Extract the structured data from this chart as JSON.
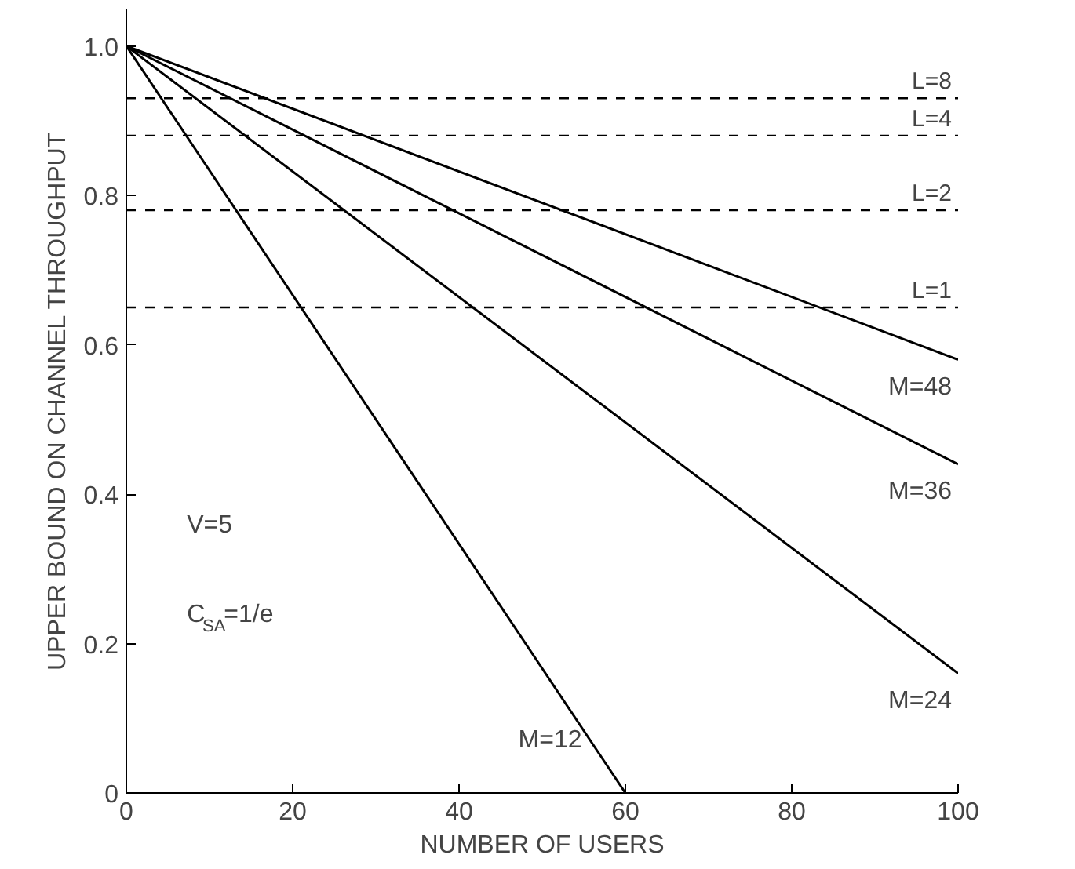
{
  "chart_data": {
    "type": "line",
    "xlabel": "NUMBER OF USERS",
    "ylabel": "UPPER BOUND ON CHANNEL THROUGHPUT",
    "xlim": [
      0,
      100
    ],
    "ylim": [
      0,
      1.05
    ],
    "xticks": [
      0,
      20,
      40,
      60,
      80,
      100
    ],
    "yticks": [
      0,
      0.2,
      0.4,
      0.6,
      0.8,
      {
        "value": 1,
        "label": "1.0"
      }
    ],
    "grid": false,
    "marker": "none",
    "line_style": "solid",
    "series": [
      {
        "name": "M=12",
        "color": "#000000",
        "x": [
          0,
          60
        ],
        "values": [
          1,
          0
        ]
      },
      {
        "name": "M=24",
        "color": "#000000",
        "x": [
          0,
          100
        ],
        "values": [
          1,
          0.16
        ]
      },
      {
        "name": "M=36",
        "color": "#000000",
        "x": [
          0,
          100
        ],
        "values": [
          1,
          0.44
        ]
      },
      {
        "name": "M=48",
        "color": "#000000",
        "x": [
          0,
          100
        ],
        "values": [
          1,
          0.58
        ]
      }
    ],
    "ref_lines": [
      {
        "axis": "y",
        "value": 0.93,
        "line_style": "dashed",
        "color": "#000000"
      },
      {
        "axis": "y",
        "value": 0.88,
        "line_style": "dashed",
        "color": "#000000"
      },
      {
        "axis": "y",
        "value": 0.78,
        "line_style": "dashed",
        "color": "#000000"
      },
      {
        "axis": "y",
        "value": 0.65,
        "line_style": "dashed",
        "color": "#000000"
      }
    ],
    "annotations": [
      "V=5",
      "C$_{SA}$=1/e",
      {
        "text": "L=8",
        "y": 0.93
      },
      {
        "text": "L=4",
        "y": 0.88
      },
      {
        "text": "L=2",
        "y": 0.78
      },
      {
        "text": "L=1",
        "y": 0.65
      }
    ]
  }
}
